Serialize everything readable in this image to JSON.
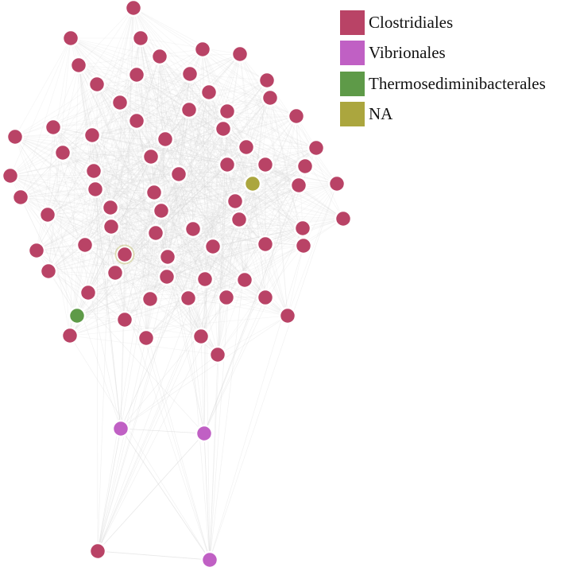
{
  "legend": {
    "items": [
      {
        "label": "Clostridiales",
        "color": "#b94366"
      },
      {
        "label": "Vibrionales",
        "color": "#c060c4"
      },
      {
        "label": "Thermosediminibacterales",
        "color": "#5e9a48"
      },
      {
        "label": "NA",
        "color": "#aba63e"
      }
    ]
  },
  "styles": {
    "edge_color": "#d8d8d8",
    "node_stroke": "#ffffff"
  }
}
